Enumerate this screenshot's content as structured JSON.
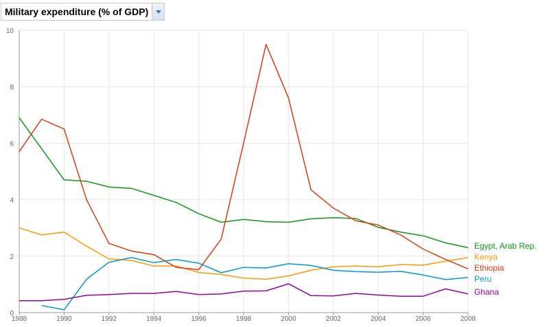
{
  "header": {
    "indicator_title": "Military expenditure (% of GDP)",
    "dropdown_icon": "chevron-down-icon"
  },
  "chart_data": {
    "type": "line",
    "title": "Military expenditure (% of GDP)",
    "xlabel": "",
    "ylabel": "",
    "xlim": [
      1988,
      2008
    ],
    "ylim": [
      0,
      10
    ],
    "x_ticks": [
      "1988",
      "1990",
      "1992",
      "1994",
      "1996",
      "1998",
      "2000",
      "2002",
      "2004",
      "2006",
      "2008"
    ],
    "y_ticks": [
      "0",
      "2",
      "4",
      "6",
      "8",
      "10"
    ],
    "grid": true,
    "legend_placement": "right, at line ends",
    "x": [
      1988,
      1989,
      1990,
      1991,
      1992,
      1993,
      1994,
      1995,
      1996,
      1997,
      1998,
      1999,
      2000,
      2001,
      2002,
      2003,
      2004,
      2005,
      2006,
      2007,
      2008
    ],
    "series": [
      {
        "name": "Egypt, Arab Rep.",
        "color": "#109618",
        "values": [
          6.9,
          5.8,
          4.7,
          4.65,
          4.45,
          4.4,
          4.15,
          3.9,
          3.5,
          3.2,
          3.3,
          3.22,
          3.2,
          3.32,
          3.36,
          3.33,
          3.02,
          2.85,
          2.72,
          2.47,
          2.3
        ]
      },
      {
        "name": "Kenya",
        "color": "#ff9900",
        "values": [
          3.0,
          2.75,
          2.85,
          2.35,
          1.9,
          1.85,
          1.65,
          1.65,
          1.42,
          1.35,
          1.22,
          1.18,
          1.3,
          1.5,
          1.62,
          1.65,
          1.62,
          1.7,
          1.68,
          1.82,
          1.95
        ]
      },
      {
        "name": "Ethiopia",
        "color": "#dc3912",
        "values": [
          5.7,
          6.85,
          6.5,
          4.0,
          2.45,
          2.18,
          2.05,
          1.6,
          1.52,
          2.6,
          6.0,
          9.5,
          7.6,
          4.35,
          3.7,
          3.25,
          3.1,
          2.75,
          2.25,
          1.88,
          1.55
        ]
      },
      {
        "name": "Peru",
        "color": "#0099c6",
        "values": [
          null,
          0.25,
          0.1,
          1.18,
          1.78,
          1.95,
          1.77,
          1.88,
          1.75,
          1.41,
          1.6,
          1.58,
          1.73,
          1.67,
          1.5,
          1.45,
          1.43,
          1.46,
          1.33,
          1.17,
          1.24
        ]
      },
      {
        "name": "Ghana",
        "color": "#990099",
        "values": [
          0.42,
          0.42,
          0.47,
          0.61,
          0.64,
          0.68,
          0.68,
          0.75,
          0.64,
          0.66,
          0.76,
          0.77,
          1.02,
          0.6,
          0.59,
          0.68,
          0.62,
          0.58,
          0.58,
          0.84,
          0.66
        ]
      }
    ]
  }
}
